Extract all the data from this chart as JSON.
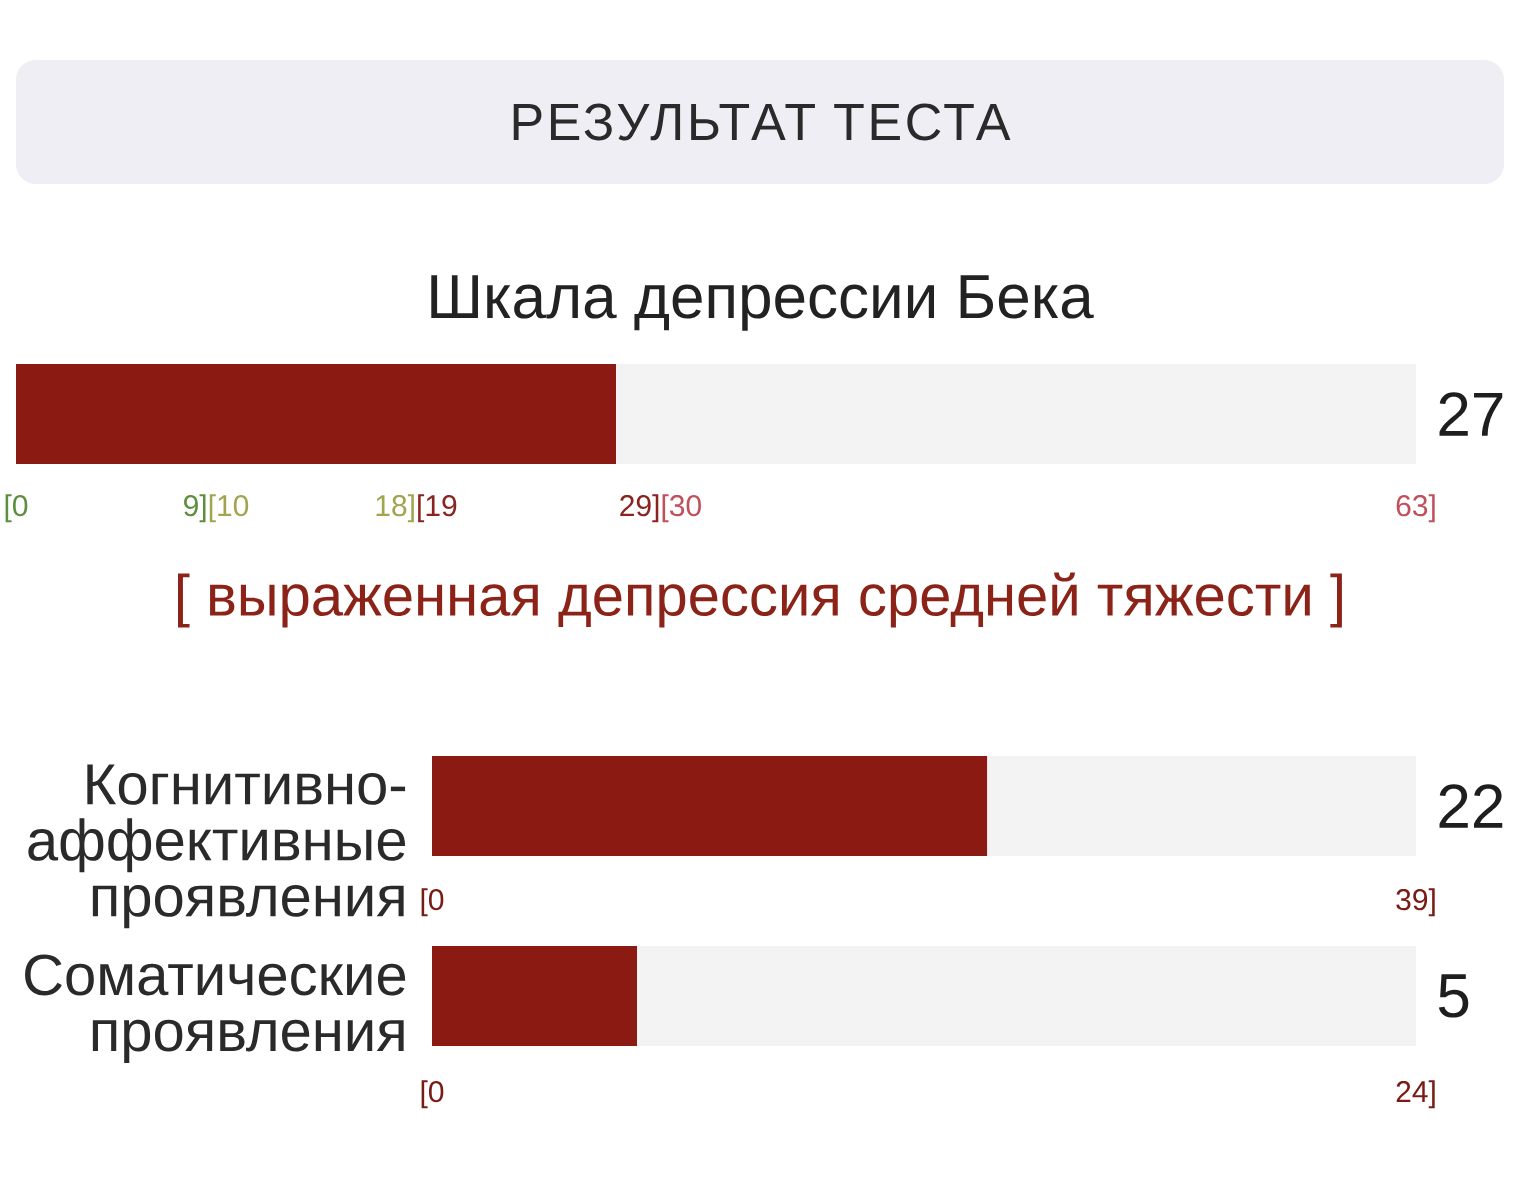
{
  "chart_data": [
    {
      "type": "other",
      "title": "РЕЗУЛЬТАТ ТЕСТА"
    },
    {
      "type": "bar",
      "orientation": "horizontal",
      "title": "Шкала депрессии Бека",
      "categories": [
        null
      ],
      "values": [
        27
      ],
      "color": "#8a1a12",
      "xlim": [
        0,
        63
      ],
      "xticks": [
        {
          "value": 0,
          "label": "[0"
        },
        {
          "value": 9,
          "label": "9][10"
        },
        {
          "value": 18,
          "label": "18][19"
        },
        {
          "value": 29,
          "label": "29][30"
        },
        {
          "value": 63,
          "label": "63]"
        }
      ],
      "bands": [
        {
          "axis": "x",
          "from": 0,
          "to": 63,
          "color": "#f3f3f3"
        }
      ],
      "annotations": [
        "27",
        "[ выраженная депрессия средней тяжести ]"
      ]
    },
    {
      "type": "bar",
      "orientation": "horizontal",
      "categories": [
        "Когнитивно-аффективные проявления"
      ],
      "values": [
        22
      ],
      "color": "#8a1a12",
      "xlim": [
        0,
        39
      ],
      "xticks": [
        {
          "value": 0,
          "label": "[0"
        },
        {
          "value": 39,
          "label": "39]"
        }
      ],
      "bands": [
        {
          "axis": "x",
          "from": 0,
          "to": 39,
          "color": "#f3f3f3"
        }
      ],
      "annotations": [
        "22"
      ]
    },
    {
      "type": "bar",
      "orientation": "horizontal",
      "categories": [
        "Соматические проявления"
      ],
      "values": [
        5
      ],
      "color": "#8a1a12",
      "xlim": [
        0,
        24
      ],
      "xticks": [
        {
          "value": 0,
          "label": "[0"
        },
        {
          "value": 24,
          "label": "24]"
        }
      ],
      "bands": [
        {
          "axis": "x",
          "from": 0,
          "to": 24,
          "color": "#f3f3f3"
        }
      ],
      "annotations": [
        "5"
      ]
    }
  ]
}
